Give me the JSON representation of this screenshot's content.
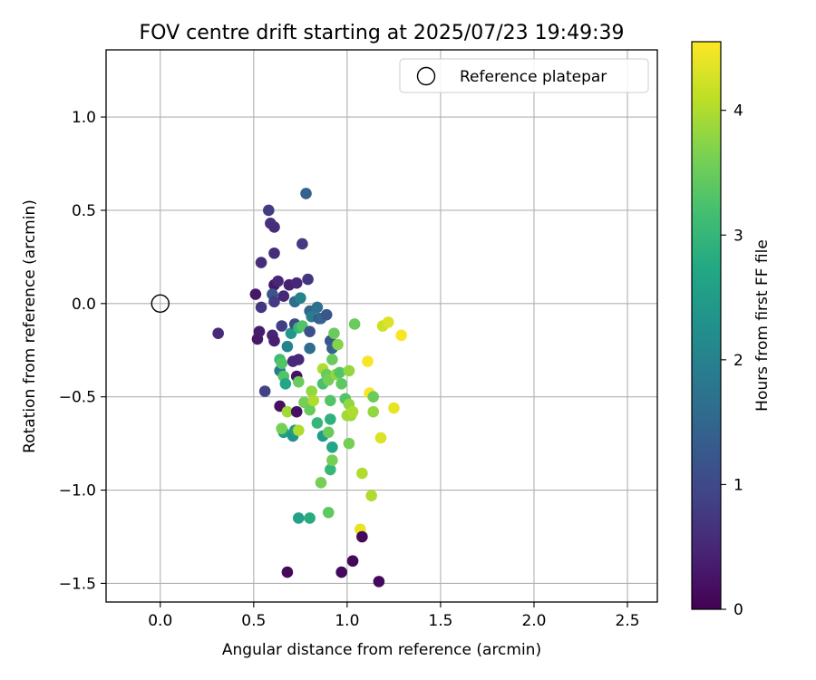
{
  "chart_data": {
    "type": "scatter",
    "title": "FOV centre drift starting at 2025/07/23 19:49:39",
    "xlabel": "Angular distance from reference (arcmin)",
    "ylabel": "Rotation from reference (arcmin)",
    "xlim": [
      -0.29,
      2.66
    ],
    "ylim": [
      -1.6,
      1.36
    ],
    "xticks": [
      0.0,
      0.5,
      1.0,
      1.5,
      2.0,
      2.5
    ],
    "xtick_labels": [
      "0.0",
      "0.5",
      "1.0",
      "1.5",
      "2.0",
      "2.5"
    ],
    "yticks": [
      -1.5,
      -1.0,
      -0.5,
      0.0,
      0.5,
      1.0
    ],
    "ytick_labels": [
      "−1.5",
      "−1.0",
      "−0.5",
      "0.0",
      "0.5",
      "1.0"
    ],
    "grid": true,
    "legend": {
      "position": "top-right",
      "entries": [
        "Reference platepar"
      ]
    },
    "reference_point": {
      "x": 0.0,
      "y": 0.0,
      "name": "Reference platepar"
    },
    "colorbar": {
      "label": "Hours from first FF file",
      "range": [
        0,
        4.55
      ],
      "ticks": [
        0,
        1,
        2,
        3,
        4
      ],
      "tick_labels": [
        "0",
        "1",
        "2",
        "3",
        "4"
      ],
      "colormap": "viridis"
    },
    "points": [
      {
        "x": 0.31,
        "y": -0.16,
        "t": 0.55
      },
      {
        "x": 0.51,
        "y": 0.05,
        "t": 0.3
      },
      {
        "x": 0.52,
        "y": -0.19,
        "t": 0.3
      },
      {
        "x": 0.53,
        "y": -0.15,
        "t": 0.35
      },
      {
        "x": 0.54,
        "y": 0.22,
        "t": 0.6
      },
      {
        "x": 0.54,
        "y": -0.02,
        "t": 0.7
      },
      {
        "x": 0.56,
        "y": -0.47,
        "t": 0.9
      },
      {
        "x": 0.58,
        "y": 0.5,
        "t": 0.8
      },
      {
        "x": 0.59,
        "y": 0.43,
        "t": 0.65
      },
      {
        "x": 0.6,
        "y": -0.17,
        "t": 0.45
      },
      {
        "x": 0.61,
        "y": -0.2,
        "t": 0.4
      },
      {
        "x": 0.61,
        "y": 0.41,
        "t": 0.6
      },
      {
        "x": 0.61,
        "y": 0.27,
        "t": 0.6
      },
      {
        "x": 0.61,
        "y": 0.1,
        "t": 0.3
      },
      {
        "x": 0.6,
        "y": 0.05,
        "t": 1.2
      },
      {
        "x": 0.61,
        "y": 0.01,
        "t": 0.8
      },
      {
        "x": 0.63,
        "y": 0.12,
        "t": 0.5
      },
      {
        "x": 0.64,
        "y": -0.55,
        "t": 0.2
      },
      {
        "x": 0.65,
        "y": -0.12,
        "t": 0.85
      },
      {
        "x": 0.66,
        "y": 0.04,
        "t": 0.5
      },
      {
        "x": 0.64,
        "y": -0.36,
        "t": 1.9
      },
      {
        "x": 0.64,
        "y": -0.3,
        "t": 3.1
      },
      {
        "x": 0.65,
        "y": -0.32,
        "t": 3.3
      },
      {
        "x": 0.66,
        "y": -0.39,
        "t": 3.3
      },
      {
        "x": 0.67,
        "y": -0.43,
        "t": 2.7
      },
      {
        "x": 0.66,
        "y": -0.69,
        "t": 2.5
      },
      {
        "x": 0.65,
        "y": -0.67,
        "t": 3.6
      },
      {
        "x": 0.68,
        "y": -0.23,
        "t": 2.0
      },
      {
        "x": 0.68,
        "y": -0.58,
        "t": 3.9
      },
      {
        "x": 0.69,
        "y": 0.1,
        "t": 0.4
      },
      {
        "x": 0.68,
        "y": -1.44,
        "t": 0.1
      },
      {
        "x": 0.7,
        "y": -0.16,
        "t": 2.4
      },
      {
        "x": 0.71,
        "y": -0.31,
        "t": 0.5
      },
      {
        "x": 0.72,
        "y": -0.11,
        "t": 1.0
      },
      {
        "x": 0.72,
        "y": 0.01,
        "t": 1.6
      },
      {
        "x": 0.71,
        "y": -0.71,
        "t": 2.3
      },
      {
        "x": 0.72,
        "y": -0.68,
        "t": 2.5
      },
      {
        "x": 0.73,
        "y": -0.58,
        "t": 0.2
      },
      {
        "x": 0.73,
        "y": -0.39,
        "t": 0.2
      },
      {
        "x": 0.73,
        "y": 0.11,
        "t": 0.5
      },
      {
        "x": 0.74,
        "y": -0.3,
        "t": 0.5
      },
      {
        "x": 0.74,
        "y": -0.42,
        "t": 3.5
      },
      {
        "x": 0.74,
        "y": -0.68,
        "t": 4.0
      },
      {
        "x": 0.75,
        "y": 0.03,
        "t": 2.0
      },
      {
        "x": 0.74,
        "y": -0.13,
        "t": 3.0
      },
      {
        "x": 0.74,
        "y": -1.15,
        "t": 2.6
      },
      {
        "x": 0.76,
        "y": 0.32,
        "t": 0.8
      },
      {
        "x": 0.77,
        "y": -0.53,
        "t": 3.6
      },
      {
        "x": 0.76,
        "y": -0.12,
        "t": 3.3
      },
      {
        "x": 0.78,
        "y": 0.59,
        "t": 1.4
      },
      {
        "x": 0.79,
        "y": 0.13,
        "t": 0.7
      },
      {
        "x": 0.8,
        "y": -0.04,
        "t": 1.5
      },
      {
        "x": 0.8,
        "y": -0.24,
        "t": 1.6
      },
      {
        "x": 0.8,
        "y": -0.15,
        "t": 1.1
      },
      {
        "x": 0.8,
        "y": -0.57,
        "t": 3.5
      },
      {
        "x": 0.8,
        "y": -1.15,
        "t": 2.8
      },
      {
        "x": 0.81,
        "y": -0.07,
        "t": 1.9
      },
      {
        "x": 0.81,
        "y": -0.47,
        "t": 3.8
      },
      {
        "x": 0.82,
        "y": -0.52,
        "t": 4.0
      },
      {
        "x": 0.84,
        "y": -0.64,
        "t": 3.0
      },
      {
        "x": 0.84,
        "y": -0.02,
        "t": 1.7
      },
      {
        "x": 0.85,
        "y": -0.08,
        "t": 1.2
      },
      {
        "x": 0.86,
        "y": -0.96,
        "t": 3.6
      },
      {
        "x": 0.86,
        "y": -0.08,
        "t": 1.5
      },
      {
        "x": 0.87,
        "y": -0.43,
        "t": 3.2
      },
      {
        "x": 0.87,
        "y": -0.35,
        "t": 4.0
      },
      {
        "x": 0.87,
        "y": -0.71,
        "t": 2.5
      },
      {
        "x": 0.89,
        "y": -0.06,
        "t": 1.2
      },
      {
        "x": 0.89,
        "y": -0.38,
        "t": 3.5
      },
      {
        "x": 0.9,
        "y": -0.41,
        "t": 3.6
      },
      {
        "x": 0.9,
        "y": -0.69,
        "t": 3.5
      },
      {
        "x": 0.9,
        "y": -1.12,
        "t": 3.4
      },
      {
        "x": 0.91,
        "y": -0.52,
        "t": 3.3
      },
      {
        "x": 0.91,
        "y": -0.62,
        "t": 2.9
      },
      {
        "x": 0.91,
        "y": -0.2,
        "t": 1.2
      },
      {
        "x": 0.91,
        "y": -0.89,
        "t": 3.0
      },
      {
        "x": 0.92,
        "y": -0.77,
        "t": 2.7
      },
      {
        "x": 0.92,
        "y": -0.84,
        "t": 3.6
      },
      {
        "x": 0.92,
        "y": -0.24,
        "t": 1.4
      },
      {
        "x": 0.92,
        "y": -0.3,
        "t": 3.5
      },
      {
        "x": 0.93,
        "y": -0.16,
        "t": 3.5
      },
      {
        "x": 0.94,
        "y": -0.38,
        "t": 3.8
      },
      {
        "x": 0.95,
        "y": -0.22,
        "t": 3.7
      },
      {
        "x": 0.96,
        "y": -0.37,
        "t": 3.3
      },
      {
        "x": 0.97,
        "y": -1.44,
        "t": 0.1
      },
      {
        "x": 0.97,
        "y": -0.43,
        "t": 3.4
      },
      {
        "x": 0.99,
        "y": -0.51,
        "t": 3.3
      },
      {
        "x": 1.0,
        "y": -0.6,
        "t": 3.9
      },
      {
        "x": 1.01,
        "y": -0.36,
        "t": 3.8
      },
      {
        "x": 1.01,
        "y": -0.54,
        "t": 3.8
      },
      {
        "x": 1.01,
        "y": -0.75,
        "t": 3.6
      },
      {
        "x": 1.02,
        "y": -0.6,
        "t": 3.9
      },
      {
        "x": 1.03,
        "y": -1.38,
        "t": 0.1
      },
      {
        "x": 1.03,
        "y": -0.58,
        "t": 4.0
      },
      {
        "x": 1.04,
        "y": -0.11,
        "t": 3.5
      },
      {
        "x": 1.07,
        "y": -1.21,
        "t": 4.4
      },
      {
        "x": 1.08,
        "y": -0.91,
        "t": 4.0
      },
      {
        "x": 1.08,
        "y": -1.25,
        "t": 0.1
      },
      {
        "x": 1.11,
        "y": -0.31,
        "t": 4.5
      },
      {
        "x": 1.12,
        "y": -0.48,
        "t": 4.5
      },
      {
        "x": 1.13,
        "y": -1.03,
        "t": 4.0
      },
      {
        "x": 1.14,
        "y": -0.58,
        "t": 3.8
      },
      {
        "x": 1.14,
        "y": -0.5,
        "t": 3.5
      },
      {
        "x": 1.17,
        "y": -1.49,
        "t": 0.1
      },
      {
        "x": 1.18,
        "y": -0.72,
        "t": 4.3
      },
      {
        "x": 1.19,
        "y": -0.12,
        "t": 4.2
      },
      {
        "x": 1.22,
        "y": -0.1,
        "t": 4.3
      },
      {
        "x": 1.25,
        "y": -0.56,
        "t": 4.4
      },
      {
        "x": 1.29,
        "y": -0.17,
        "t": 4.5
      }
    ]
  }
}
